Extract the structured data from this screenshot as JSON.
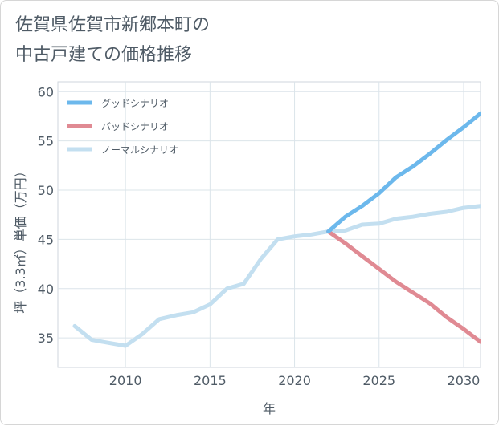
{
  "title": "佐賀県佐賀市新郷本町の\n中古戸建ての価格推移",
  "chart_data": {
    "type": "line",
    "xlabel": "年",
    "ylabel": "坪（3.3㎡）単価（万円）",
    "xlim": [
      2006,
      2031
    ],
    "ylim": [
      32,
      61
    ],
    "xticks": [
      2010,
      2015,
      2020,
      2025,
      2030
    ],
    "yticks": [
      35,
      40,
      45,
      50,
      55,
      60
    ],
    "grid": true,
    "legend_position": "top-left",
    "series": [
      {
        "name": "グッドシナリオ",
        "color": "#6cb8ec",
        "x": [
          2022,
          2023,
          2024,
          2025,
          2026,
          2027,
          2028,
          2029,
          2030,
          2031
        ],
        "y": [
          45.8,
          47.3,
          48.4,
          49.7,
          51.3,
          52.4,
          53.7,
          55.1,
          56.4,
          57.8
        ]
      },
      {
        "name": "バッドシナリオ",
        "color": "#e08a93",
        "x": [
          2022,
          2023,
          2024,
          2025,
          2026,
          2027,
          2028,
          2029,
          2030,
          2031
        ],
        "y": [
          45.8,
          44.6,
          43.3,
          42.0,
          40.7,
          39.6,
          38.5,
          37.1,
          35.9,
          34.6
        ]
      },
      {
        "name": "ノーマルシナリオ",
        "color": "#c3dff0",
        "x": [
          2007,
          2008,
          2009,
          2010,
          2011,
          2012,
          2013,
          2014,
          2015,
          2016,
          2017,
          2018,
          2019,
          2020,
          2021,
          2022,
          2023,
          2024,
          2025,
          2026,
          2027,
          2028,
          2029,
          2030,
          2031
        ],
        "y": [
          36.2,
          34.8,
          34.5,
          34.2,
          35.4,
          36.9,
          37.3,
          37.6,
          38.4,
          40.0,
          40.5,
          43.0,
          45.0,
          45.3,
          45.5,
          45.8,
          45.9,
          46.5,
          46.6,
          47.1,
          47.3,
          47.6,
          47.8,
          48.2,
          48.4
        ]
      }
    ]
  }
}
